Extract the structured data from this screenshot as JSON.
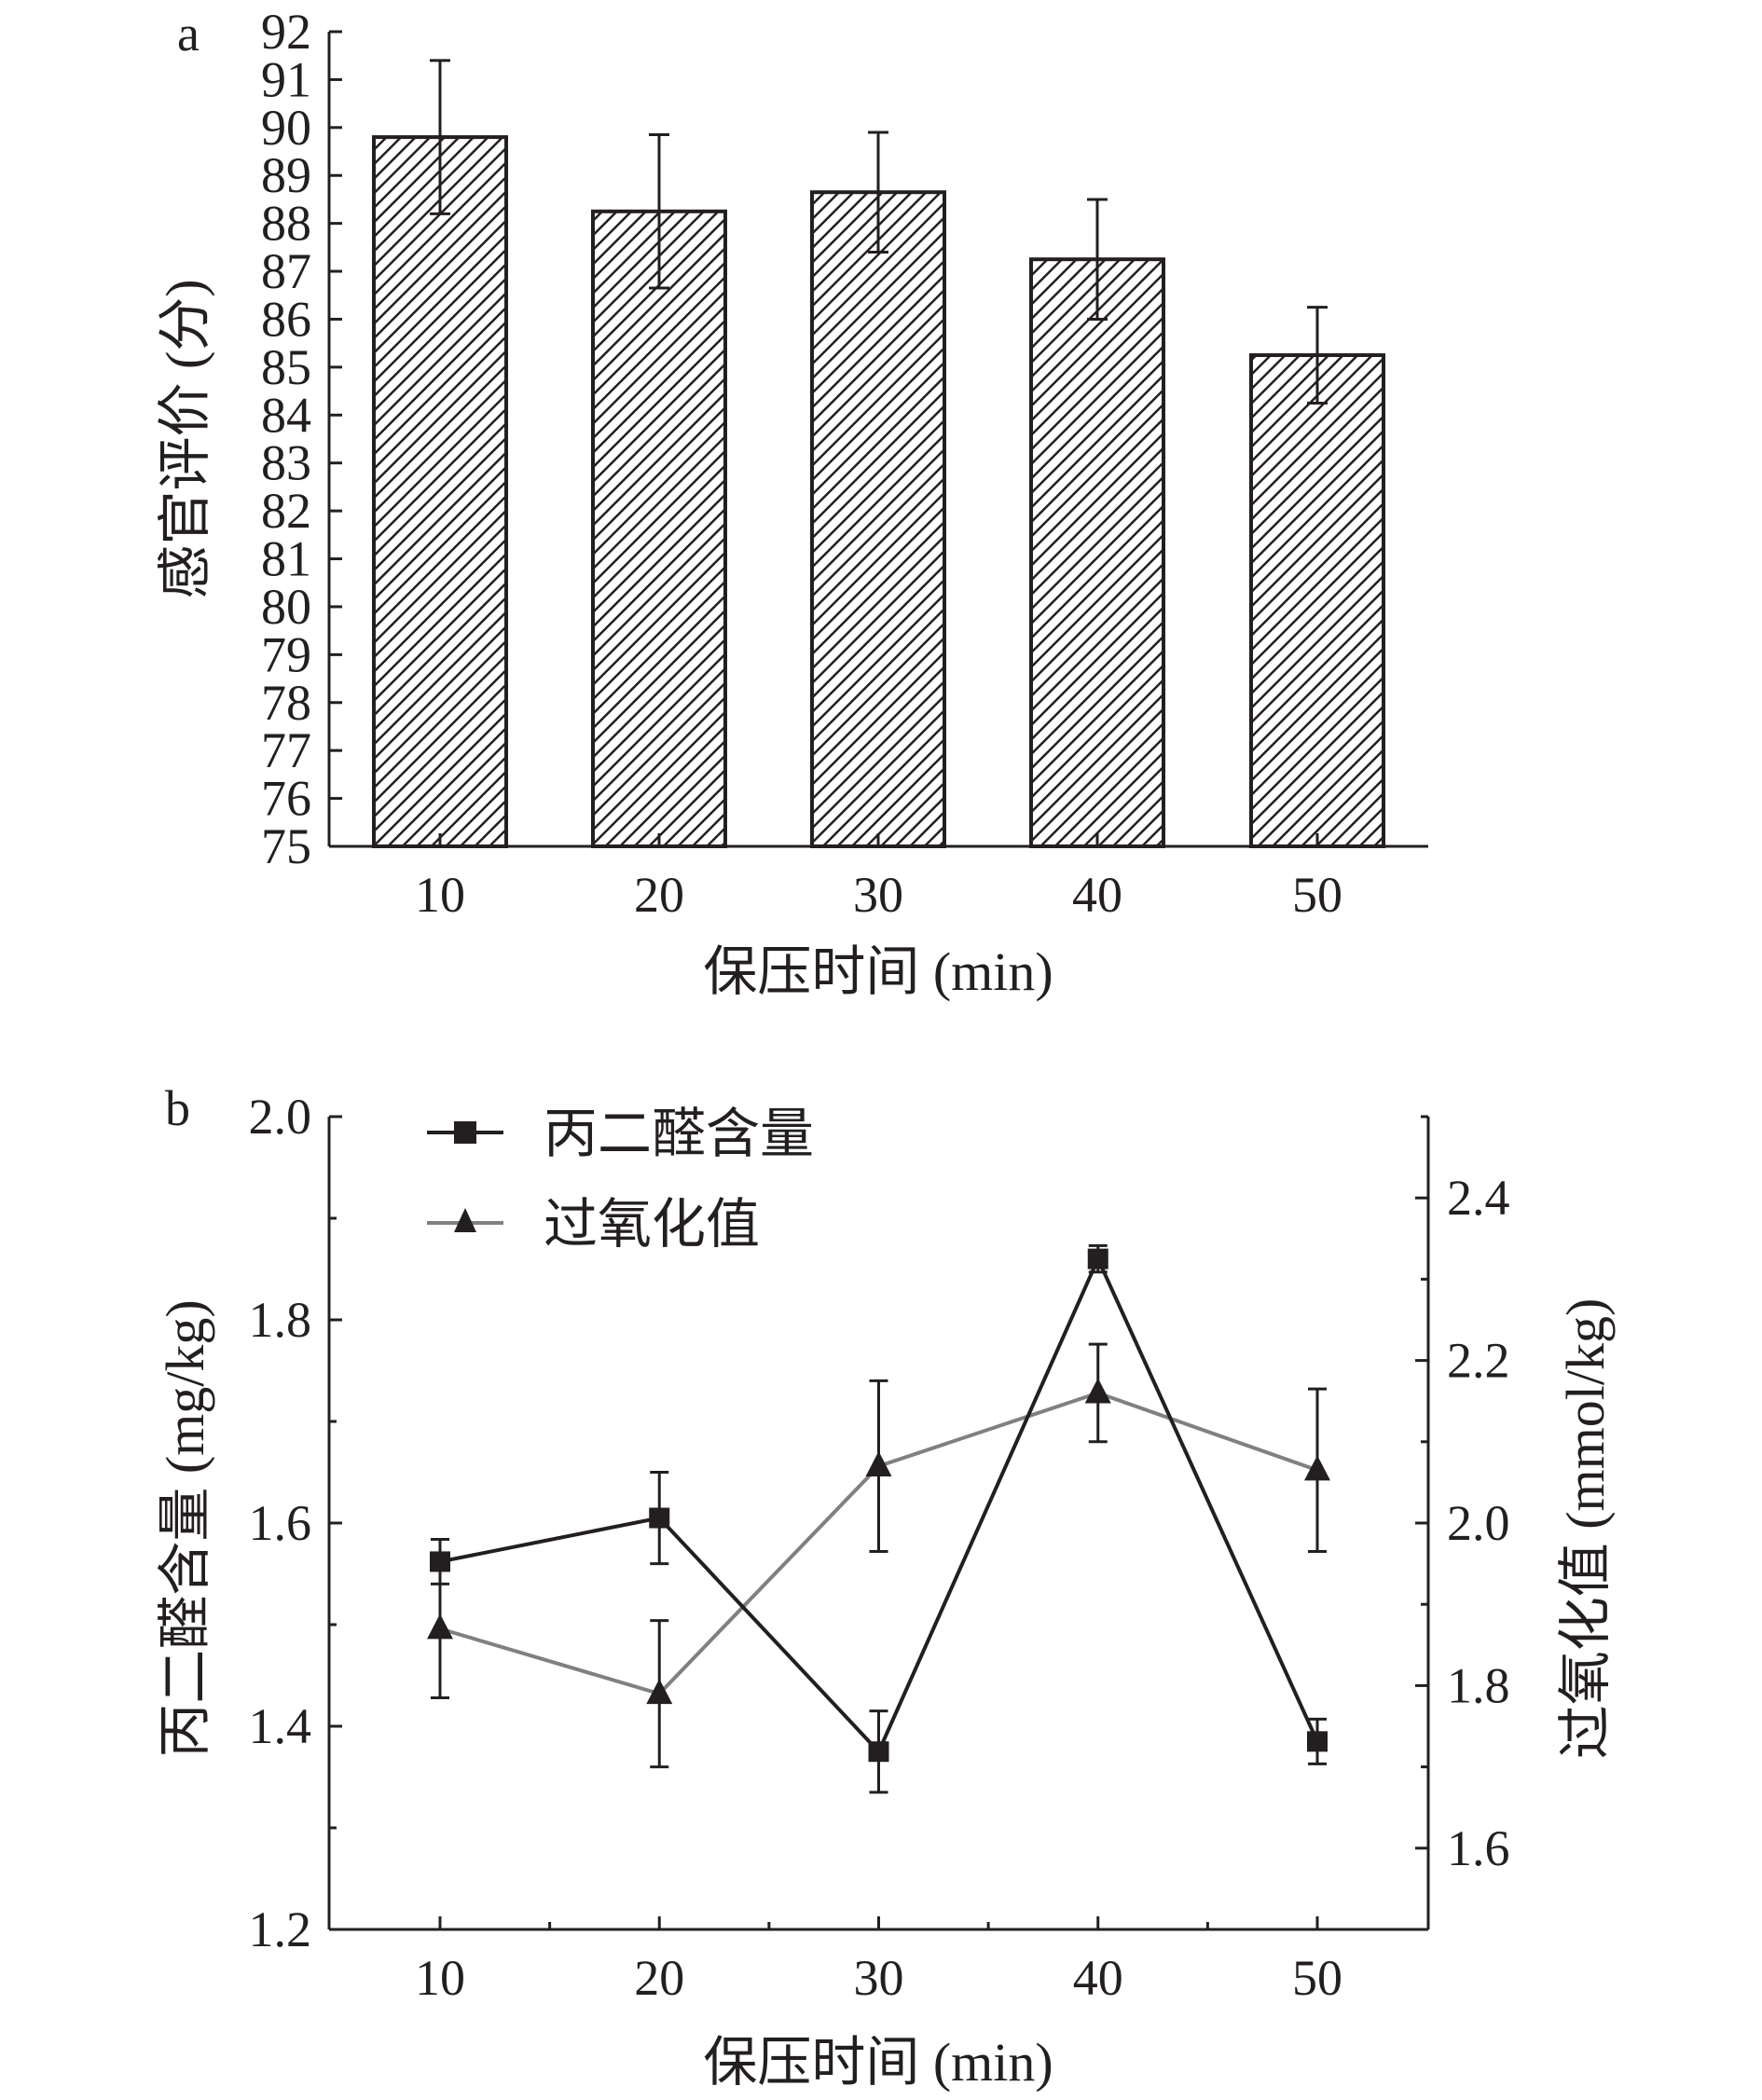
{
  "colors": {
    "ink": "#231f20",
    "gray_series": "#808080",
    "bar_fill": "#ffffff"
  },
  "chart_data": [
    {
      "panel_label": "a",
      "type": "bar",
      "categories": [
        "10",
        "20",
        "30",
        "40",
        "50"
      ],
      "values": [
        89.8,
        88.25,
        88.65,
        87.25,
        85.25
      ],
      "errors": [
        1.6,
        1.6,
        1.25,
        1.25,
        1.0
      ],
      "xlabel": "保压时间 (min)",
      "ylabel": "感官评价 (分)",
      "ylim": [
        75,
        92
      ],
      "yticks": [
        "75",
        "76",
        "77",
        "78",
        "79",
        "80",
        "81",
        "82",
        "83",
        "84",
        "85",
        "86",
        "87",
        "88",
        "89",
        "90",
        "91",
        "92"
      ],
      "bar_pattern": "diagonal-hatch",
      "grid": false
    },
    {
      "panel_label": "b",
      "type": "line",
      "x": [
        10,
        20,
        30,
        40,
        50
      ],
      "xticks": [
        "10",
        "20",
        "30",
        "40",
        "50"
      ],
      "xlabel": "保压时间 (min)",
      "legend_position": "top-left",
      "grid": false,
      "left_axis": {
        "label": "丙二醛含量 (mg/kg)",
        "ylim": [
          1.2,
          2.0
        ],
        "ticks": [
          "1.2",
          "1.4",
          "1.6",
          "1.8",
          "2.0"
        ]
      },
      "right_axis": {
        "label": "过氧化值 (mmol/kg)",
        "ylim": [
          1.5,
          2.5
        ],
        "ticks": [
          "1.6",
          "1.8",
          "2.0",
          "2.2",
          "2.4"
        ]
      },
      "series": [
        {
          "name": "丙二醛含量",
          "axis": "left",
          "marker": "square",
          "color": "#231f20",
          "values": [
            1.562,
            1.605,
            1.375,
            1.86,
            1.385
          ],
          "errors": [
            0.022,
            0.045,
            0.04,
            0.013,
            0.022
          ]
        },
        {
          "name": "过氧化值",
          "axis": "right",
          "marker": "triangle",
          "color": "#808080",
          "values": [
            1.87,
            1.79,
            2.07,
            2.16,
            2.065
          ],
          "errors": [
            0.085,
            0.09,
            0.105,
            0.06,
            0.1
          ]
        }
      ]
    }
  ]
}
